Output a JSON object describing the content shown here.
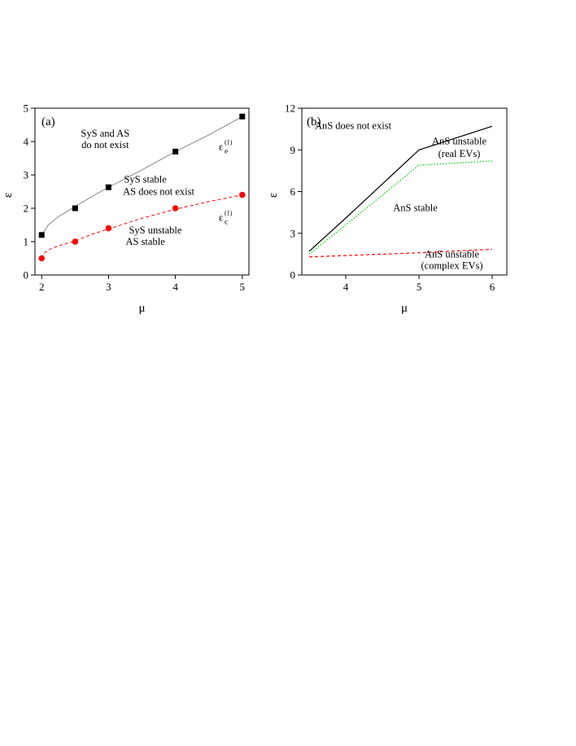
{
  "chart_data": [
    {
      "type": "scatter",
      "panel_label": "(a)",
      "xlabel": "μ",
      "ylabel": "ε",
      "xlim": [
        1.9,
        5.1
      ],
      "ylim": [
        0,
        5
      ],
      "xticks": [
        2,
        3,
        4,
        5
      ],
      "yticks": [
        0,
        1,
        2,
        3,
        4,
        5
      ],
      "grid": false,
      "series": [
        {
          "name": "",
          "color": "#000000",
          "marker": "square",
          "x": [
            2,
            2.5,
            3,
            4,
            5
          ],
          "y": [
            1.2,
            2.0,
            2.63,
            3.7,
            4.75
          ],
          "curve_x": [
            2,
            2.1,
            2.25,
            2.5,
            2.75,
            3,
            3.5,
            4,
            4.5,
            5
          ],
          "curve_y": [
            1.2,
            1.5,
            1.75,
            2.05,
            2.35,
            2.63,
            3.15,
            3.7,
            4.2,
            4.75
          ],
          "curve_style": "solid-gray"
        },
        {
          "name": "",
          "color": "#ff0000",
          "marker": "circle",
          "x": [
            2,
            2.5,
            3,
            4,
            5
          ],
          "y": [
            0.5,
            1.0,
            1.4,
            2.0,
            2.4
          ],
          "curve_x": [
            2,
            2.05,
            2.15,
            2.3,
            2.5,
            2.75,
            3,
            3.5,
            4,
            4.5,
            5
          ],
          "curve_y": [
            0.5,
            0.68,
            0.8,
            0.9,
            1.02,
            1.22,
            1.38,
            1.7,
            1.97,
            2.2,
            2.4
          ],
          "curve_style": "dashed-red"
        }
      ],
      "annotations": [
        {
          "text": "SyS and AS",
          "x": 2.95,
          "y": 4.15
        },
        {
          "text": "do not exist",
          "x": 2.95,
          "y": 3.8
        },
        {
          "text": "SyS stable",
          "x": 3.55,
          "y": 2.77
        },
        {
          "text": "AS does not exist",
          "x": 3.75,
          "y": 2.4
        },
        {
          "text": "SyS unstable",
          "x": 3.7,
          "y": 1.25
        },
        {
          "text": "AS stable",
          "x": 3.55,
          "y": 0.9
        }
      ],
      "curve_labels": [
        {
          "main": "ε",
          "sub": "e",
          "sup": "(1)",
          "x": 4.65,
          "y": 3.75
        },
        {
          "main": "ε",
          "sub": "c",
          "sup": "(1)",
          "x": 4.65,
          "y": 1.62
        }
      ]
    },
    {
      "type": "line",
      "panel_label": "(b)",
      "xlabel": "μ",
      "ylabel": "ε",
      "xlim": [
        3.4,
        6.2
      ],
      "ylim": [
        0,
        12
      ],
      "xticks": [
        4,
        5,
        6
      ],
      "yticks": [
        0,
        3,
        6,
        9,
        12
      ],
      "grid": false,
      "series": [
        {
          "name": "",
          "color": "#000000",
          "style": "solid",
          "x": [
            3.5,
            4,
            5,
            6
          ],
          "y": [
            1.7,
            4.1,
            9.0,
            10.7
          ]
        },
        {
          "name": "",
          "color": "#00cc00",
          "style": "dotted",
          "x": [
            3.5,
            4,
            5,
            6
          ],
          "y": [
            1.5,
            3.6,
            7.9,
            8.2
          ]
        },
        {
          "name": "",
          "color": "#ff0000",
          "style": "dashed",
          "x": [
            3.5,
            4,
            5,
            6
          ],
          "y": [
            1.3,
            1.4,
            1.6,
            1.85
          ]
        }
      ],
      "annotations": [
        {
          "text": "AnS does not exist",
          "x": 4.1,
          "y": 10.5
        },
        {
          "text": "AnS unstable",
          "x": 5.55,
          "y": 9.4
        },
        {
          "text": "(real EVs)",
          "x": 5.55,
          "y": 8.5
        },
        {
          "text": "AnS stable",
          "x": 4.95,
          "y": 4.6
        },
        {
          "text": "AnS unstable",
          "x": 5.45,
          "y": 1.25
        },
        {
          "text": "(complex EVs)",
          "x": 5.45,
          "y": 0.45
        }
      ]
    }
  ]
}
